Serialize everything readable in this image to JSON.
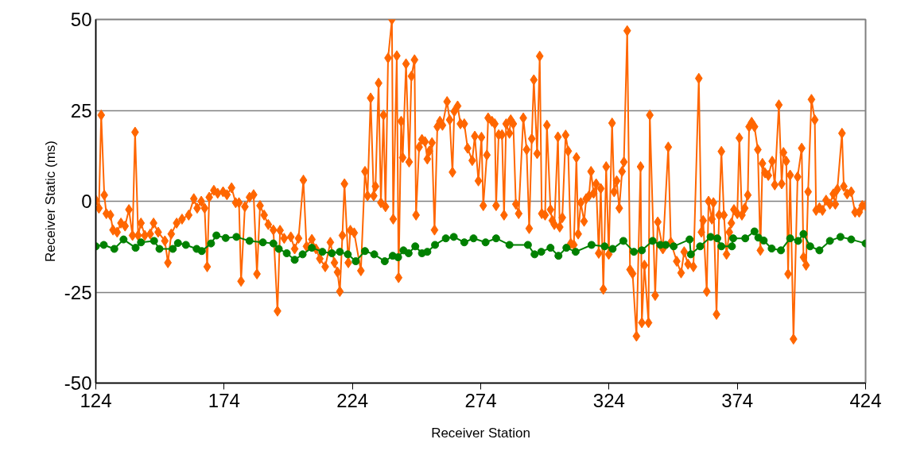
{
  "chart_data": {
    "type": "line",
    "xlabel": "Receiver Station",
    "ylabel": "Receiver Static (ms)",
    "xlim": [
      124,
      424
    ],
    "xticks": [
      124,
      174,
      224,
      274,
      324,
      374,
      424
    ],
    "ylim": [
      -50,
      50
    ],
    "yticks": [
      -50,
      -25,
      0,
      25,
      50
    ],
    "grid": "y",
    "series": [
      {
        "color": "#ff6600",
        "marker": "diamond",
        "x": [
          124,
          125.2,
          126.1,
          127.3,
          128.1,
          129.7,
          130.7,
          132.3,
          133.8,
          135.4,
          136.9,
          138.3,
          139.3,
          140.5,
          141.6,
          143.1,
          145.2,
          146.5,
          148.3,
          150.9,
          152.1,
          153.4,
          155.5,
          157.6,
          160.2,
          162.2,
          163.5,
          165.1,
          166.4,
          167.4,
          168.2,
          170,
          171.5,
          173.6,
          175.1,
          176.9,
          178.5,
          179.8,
          180.6,
          182.1,
          183.9,
          185.5,
          186.8,
          188,
          189.6,
          191.2,
          193.2,
          194.8,
          195.8,
          197.4,
          200,
          201.5,
          203,
          204.9,
          206.1,
          208.2,
          209.8,
          211.3,
          213.4,
          215.4,
          217,
          218.2,
          219.1,
          220.1,
          220.9,
          222.4,
          223.2,
          224.7,
          227.3,
          228.9,
          229.9,
          231.1,
          232.3,
          233,
          234.2,
          235.1,
          236.1,
          236.9,
          237.9,
          239.4,
          239.9,
          241.3,
          242,
          243,
          243.6,
          244.9,
          246.1,
          247,
          248.2,
          248.8,
          250,
          251.1,
          252.3,
          253.2,
          254,
          255,
          256,
          257.1,
          258.1,
          259.1,
          260.9,
          261.9,
          263,
          263.7,
          265,
          266.1,
          267.6,
          268.9,
          270.7,
          271.7,
          273.1,
          274.3,
          275,
          276.4,
          276.9,
          278.4,
          279.5,
          280,
          281,
          282.3,
          283.1,
          283.9,
          285.2,
          285.7,
          286.7,
          287.7,
          288.8,
          290.6,
          291.9,
          292.9,
          293.9,
          294.7,
          296,
          297,
          297.8,
          299.1,
          299.8,
          301.2,
          301.9,
          302.7,
          304.1,
          304.8,
          305.8,
          307.1,
          308.1,
          309.1,
          310.3,
          311.3,
          312,
          313,
          314.3,
          315.1,
          316.2,
          317,
          318,
          319,
          320,
          320.8,
          321.8,
          322.9,
          323.9,
          325.2,
          326,
          327,
          328,
          329.1,
          329.8,
          331.1,
          332.2,
          333.2,
          334.7,
          336.3,
          336.8,
          337.8,
          339.4,
          339.9,
          342,
          343,
          345,
          347.1,
          348.1,
          350.4,
          352.1,
          353.3,
          354.8,
          356.9,
          359,
          360,
          360.7,
          362.1,
          362.8,
          364.1,
          364.7,
          365.9,
          366.9,
          367.8,
          368.8,
          369.8,
          370.9,
          371.7,
          372.7,
          374,
          374.8,
          375.8,
          376.9,
          378.1,
          378.6,
          379.6,
          380.7,
          382,
          383,
          383.8,
          384.8,
          386.1,
          387.6,
          388.6,
          390.2,
          391.3,
          392,
          393.1,
          393.8,
          394.6,
          395.9,
          397.5,
          399.1,
          399.8,
          400.8,
          401.6,
          402.9,
          404.2,
          404.7,
          406,
          407.2,
          408.6,
          410.1,
          411.4,
          412.2,
          413,
          414.8,
          415.5,
          416.8,
          418.4,
          419.9,
          421.5,
          422.7,
          424
        ],
        "values": [
          0.3,
          -1.9,
          23.7,
          1.7,
          -3.4,
          -3.8,
          -7.9,
          -8.5,
          -6,
          -6.8,
          -2.3,
          -9.4,
          19,
          -9.4,
          -6,
          -9.4,
          -9,
          -6,
          -8.5,
          -10.9,
          -16.9,
          -9,
          -6,
          -4.9,
          -3.8,
          0.7,
          -1.9,
          0,
          -1.9,
          -18,
          1.1,
          3,
          2.2,
          2.6,
          1.8,
          3.7,
          -0.4,
          -0.4,
          -22,
          -1.5,
          1.1,
          1.8,
          -20,
          -1.2,
          -3.8,
          -6.4,
          -7.9,
          -30.2,
          -8,
          -10.2,
          -9.8,
          -13.1,
          -10.2,
          5.8,
          -12.4,
          -10.5,
          -13.1,
          -15.8,
          -18,
          -11.3,
          -16.9,
          -19.5,
          -24.8,
          -9.4,
          4.8,
          -16.9,
          -8,
          -8.7,
          -19.1,
          8.2,
          1.5,
          28.4,
          1.5,
          4.1,
          32.5,
          -0.4,
          23.7,
          -1.5,
          39.4,
          50,
          -4.9,
          40,
          -21,
          22,
          12,
          37.8,
          10.8,
          34.4,
          38.9,
          -3.8,
          14.9,
          17,
          16.4,
          11.6,
          13.8,
          16.1,
          -7.9,
          20.5,
          22,
          20.9,
          27.4,
          22.4,
          8,
          24.7,
          26.2,
          21.3,
          21.3,
          14.6,
          11.2,
          17.9,
          5.6,
          17.6,
          -1.2,
          12.7,
          22.9,
          22,
          21.3,
          -1.2,
          18.3,
          18.3,
          -3.8,
          21.3,
          18.7,
          22.4,
          21.3,
          -0.8,
          -3.4,
          22.9,
          14.2,
          -7.5,
          17.2,
          33.4,
          13.1,
          39.9,
          -3.4,
          -3.8,
          20.9,
          -2.3,
          -5.3,
          -6.4,
          17.7,
          -7.1,
          -4.5,
          18.2,
          13.8,
          -11.6,
          -12,
          12,
          -9,
          -0.4,
          -5.5,
          0.7,
          1.5,
          8.2,
          2.2,
          4.8,
          -14.3,
          3.5,
          -24.2,
          9.5,
          -14.6,
          21.5,
          2.6,
          5.6,
          -1.9,
          8.2,
          10.8,
          46.9,
          -18.8,
          -19.9,
          -37.1,
          9.5,
          -33.4,
          -17.6,
          -33.4,
          23.7,
          -25.9,
          -5.7,
          -13.1,
          14.9,
          -11.3,
          -16.5,
          -19.7,
          -13.9,
          -17.3,
          -18,
          33.8,
          -8.5,
          -5.3,
          -24.8,
          0,
          -4.9,
          -0.4,
          -31.1,
          -3.8,
          13.7,
          -3.8,
          -14.6,
          -8.5,
          -6,
          -2.3,
          -3.4,
          17.4,
          -3.8,
          -1.9,
          1.7,
          20.5,
          21.7,
          20.5,
          14.2,
          -13.5,
          10.4,
          7.8,
          7.1,
          11,
          4.5,
          26.5,
          4.8,
          13.4,
          11,
          -20,
          7.2,
          -37.9,
          6.7,
          14.6,
          -15.4,
          -17.6,
          2.6,
          28,
          22.4,
          -2.5,
          -1.8,
          -2.5,
          0.3,
          -0.8,
          2,
          -0.8,
          3.3,
          18.7,
          4.1,
          2,
          2.6,
          -3,
          -3,
          -1.2,
          -1.2
        ]
      },
      {
        "color": "#008000",
        "marker": "circle",
        "x": [
          124,
          127.1,
          131.2,
          134.8,
          139.5,
          141.6,
          146.7,
          148.8,
          154,
          156,
          159.1,
          163.3,
          165.3,
          168.9,
          171,
          174.6,
          178.8,
          183.9,
          189.1,
          193.2,
          195.3,
          198.4,
          201.5,
          204.6,
          208.2,
          212.3,
          216,
          219.1,
          222.2,
          225.3,
          228.9,
          232.5,
          236.6,
          239.7,
          241.8,
          243.9,
          245.9,
          248.5,
          251.1,
          253.2,
          256.2,
          260.4,
          263.5,
          267.6,
          271.2,
          275.9,
          280,
          285.2,
          292.4,
          295,
          297.6,
          301.2,
          304.3,
          307.4,
          311,
          317.2,
          322.3,
          325.4,
          329.6,
          333.7,
          336.8,
          341,
          344,
          346.1,
          349.2,
          355.4,
          355.9,
          359.5,
          363.6,
          366.2,
          367.8,
          371.9,
          372.4,
          377.1,
          380.7,
          382.2,
          384.3,
          387.4,
          391,
          394.6,
          397.7,
          399.8,
          402.4,
          406,
          410.1,
          414.2,
          418.4,
          424
        ],
        "values": [
          -12.4,
          -12,
          -13.1,
          -10.5,
          -12.8,
          -11.3,
          -10.9,
          -13.1,
          -13.1,
          -11.5,
          -12,
          -13.1,
          -13.7,
          -11.6,
          -9.4,
          -10.1,
          -9.8,
          -10.9,
          -11.3,
          -11.6,
          -13.1,
          -14.3,
          -16.1,
          -14.6,
          -12.8,
          -13.9,
          -14.3,
          -13.9,
          -14.6,
          -16.5,
          -13.7,
          -14.6,
          -16.5,
          -15,
          -15.4,
          -13.5,
          -14.3,
          -12.4,
          -14.3,
          -13.9,
          -12,
          -10.2,
          -9.8,
          -11.3,
          -10.2,
          -11.3,
          -10.2,
          -12,
          -12,
          -14.6,
          -13.9,
          -12.8,
          -15,
          -12.8,
          -13.9,
          -12,
          -12.4,
          -13.1,
          -10.9,
          -13.9,
          -13.5,
          -10.9,
          -12,
          -12,
          -12.4,
          -10.5,
          -14.6,
          -12.4,
          -9.8,
          -10.2,
          -12.4,
          -12.4,
          -10.2,
          -10.2,
          -8.3,
          -10,
          -10.8,
          -13,
          -13.5,
          -10.2,
          -10.9,
          -9,
          -12.4,
          -13.5,
          -10.9,
          -9.8,
          -10.5,
          -11.6
        ]
      }
    ]
  }
}
